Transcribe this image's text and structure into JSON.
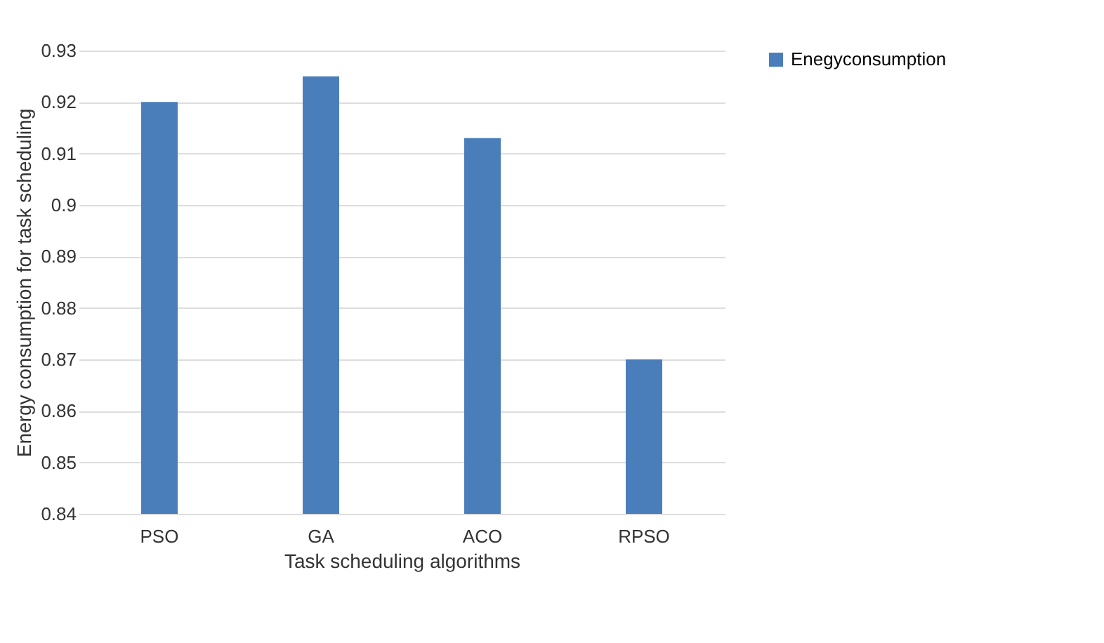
{
  "chart_data": {
    "type": "bar",
    "xlabel": "Task scheduling algorithms",
    "ylabel": "Energy consumption for task scheduling",
    "categories": [
      "PSO",
      "GA",
      "ACO",
      "RPSO"
    ],
    "series": [
      {
        "name": "Enegyconsumption",
        "color": "#4a7ebb",
        "values": [
          0.92,
          0.925,
          0.913,
          0.87
        ]
      }
    ],
    "ylim": [
      0.84,
      0.93
    ],
    "yticks": [
      0.84,
      0.85,
      0.86,
      0.87,
      0.88,
      0.89,
      0.9,
      0.91,
      0.92,
      0.93
    ],
    "grid": "y",
    "legend": "right"
  }
}
